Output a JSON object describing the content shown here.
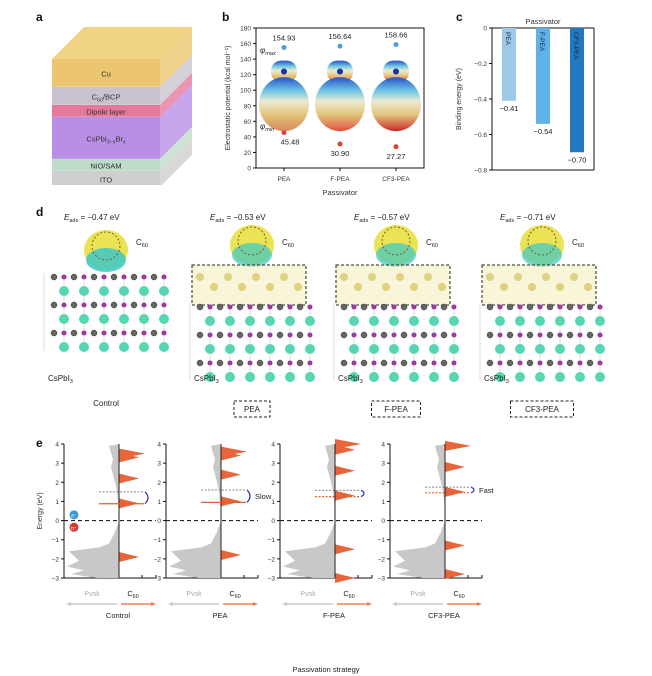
{
  "panels": {
    "a": {
      "label": "a",
      "layers": [
        {
          "name": "Cu",
          "sub": "",
          "rest": "",
          "color": "#EBC56F"
        },
        {
          "name": "C",
          "sub": "60",
          "rest": "/BCP",
          "color": "#C9C3CF"
        },
        {
          "name": "Dipole layer",
          "sub": "",
          "rest": "",
          "color": "#E5799D"
        },
        {
          "name": "CsPbI",
          "sub": "3−x",
          "rest": "Br",
          "sub2": "x",
          "color": "#B88EE6"
        },
        {
          "name": "NiO/SAM",
          "sub": "",
          "rest": "",
          "color": "#BFDCCB"
        },
        {
          "name": "ITO",
          "sub": "",
          "rest": "",
          "color": "#CFCFCF"
        }
      ]
    },
    "b": {
      "label": "b",
      "phi_max_label": "φ",
      "phi_max_sub": "max",
      "phi_min_label": "φ",
      "phi_min_sub": "min"
    },
    "c": {
      "label": "c"
    },
    "d": {
      "label": "d",
      "structures": [
        {
          "eads_prefix": "E",
          "eads_sub": "ads",
          "eads_value": " = −0.47 eV",
          "c60": "C",
          "c60_sub": "60",
          "substrate": "CsPbI",
          "substrate_sub": "3",
          "caption": "Control",
          "boxed": false
        },
        {
          "eads_prefix": "E",
          "eads_sub": "ads",
          "eads_value": " = −0.53 eV",
          "c60": "C",
          "c60_sub": "60",
          "substrate": "CsPbI",
          "substrate_sub": "3",
          "caption": "PEA",
          "boxed": true
        },
        {
          "eads_prefix": "E",
          "eads_sub": "ads",
          "eads_value": " = −0.57 eV",
          "c60": "C",
          "c60_sub": "60",
          "substrate": "CsPbI",
          "substrate_sub": "3",
          "caption": "F-PEA",
          "boxed": true
        },
        {
          "eads_prefix": "E",
          "eads_sub": "ads",
          "eads_value": " = −0.71 eV",
          "c60": "C",
          "c60_sub": "60",
          "substrate": "CsPbI",
          "substrate_sub": "3",
          "caption": "CF3-PEA",
          "boxed": true
        }
      ]
    },
    "e": {
      "label": "e",
      "electron_label": "e⁻",
      "hole_label": "h⁺",
      "left_arrow_label": "Pvsk",
      "right_arrow_label": "C",
      "right_arrow_sub": "60",
      "xlabel": "Passivation strategy"
    }
  },
  "chart_data": [
    {
      "id": "b",
      "type": "scatter",
      "title": "",
      "xlabel": "Passivator",
      "ylabel": "Electrostatic potential (kcal mol⁻¹)",
      "ylim": [
        0,
        180
      ],
      "yticks": [
        0,
        20,
        40,
        60,
        80,
        100,
        120,
        140,
        160,
        180
      ],
      "categories": [
        "PEA",
        "F-PEA",
        "CF3-PEA"
      ],
      "series": [
        {
          "name": "φmax",
          "values": [
            154.93,
            156.64,
            158.66
          ],
          "color": "#4A9FD8",
          "labels": [
            "154.93",
            "156.64",
            "158.66"
          ]
        },
        {
          "name": "φmin",
          "values": [
            45.48,
            30.9,
            27.27
          ],
          "color": "#D9443A",
          "labels": [
            "45.48",
            "30.90",
            "27.27"
          ]
        }
      ]
    },
    {
      "id": "c",
      "type": "bar",
      "title": "Passivator",
      "xlabel": "",
      "ylabel": "Binding energy (eV)",
      "ylim": [
        -0.8,
        0
      ],
      "yticks": [
        0,
        -0.2,
        -0.4,
        -0.6,
        -0.8
      ],
      "ytick_labels": [
        "0",
        "−0.2",
        "−0.4",
        "−0.6",
        "−0.8"
      ],
      "categories": [
        "PEA",
        "F-PEA",
        "CF3-PEA"
      ],
      "values": [
        -0.41,
        -0.54,
        -0.7
      ],
      "value_labels": [
        "−0.41",
        "−0.54",
        "−0.70"
      ],
      "colors": [
        "#9DC8E8",
        "#5EB2E6",
        "#2279C0"
      ]
    },
    {
      "id": "e",
      "type": "area",
      "title": "",
      "ylabel": "Energy (eV)",
      "ylim": [
        -3,
        4
      ],
      "yticks": [
        -3,
        -2,
        -1,
        0,
        1,
        2,
        3,
        4
      ],
      "ytick_labels": [
        "−3",
        "−2",
        "−1",
        "0",
        "1",
        "2",
        "3",
        "4"
      ],
      "fermi_level": 0,
      "subplots": [
        {
          "caption": "Control",
          "pvsk_cbm": 1.5,
          "c60_lumo": 0.88,
          "annotation": "",
          "c60_peaks": [
            3.5,
            3.3,
            2.2,
            0.9,
            -1.9
          ],
          "lumo_style": "solid"
        },
        {
          "caption": "PEA",
          "pvsk_cbm": 1.6,
          "c60_lumo": 0.95,
          "annotation": "Slow",
          "c60_peaks": [
            3.6,
            3.4,
            2.4,
            1.0,
            -1.8
          ],
          "lumo_style": "solid"
        },
        {
          "caption": "F-PEA",
          "pvsk_cbm": 1.58,
          "c60_lumo": 1.25,
          "annotation": "",
          "c60_peaks": [
            4.0,
            3.7,
            2.6,
            1.3,
            -1.5,
            -3.0
          ],
          "lumo_style": "dashed"
        },
        {
          "caption": "CF3-PEA",
          "pvsk_cbm": 1.75,
          "c60_lumo": 1.45,
          "annotation": "Fast",
          "c60_peaks": [
            3.9,
            2.8,
            1.5,
            -1.3,
            -2.8
          ],
          "lumo_style": "dashed"
        }
      ],
      "colors": {
        "pvsk": "#C8C8C8",
        "c60": "#E8643A",
        "bracket": "#2B2BB8"
      }
    }
  ]
}
